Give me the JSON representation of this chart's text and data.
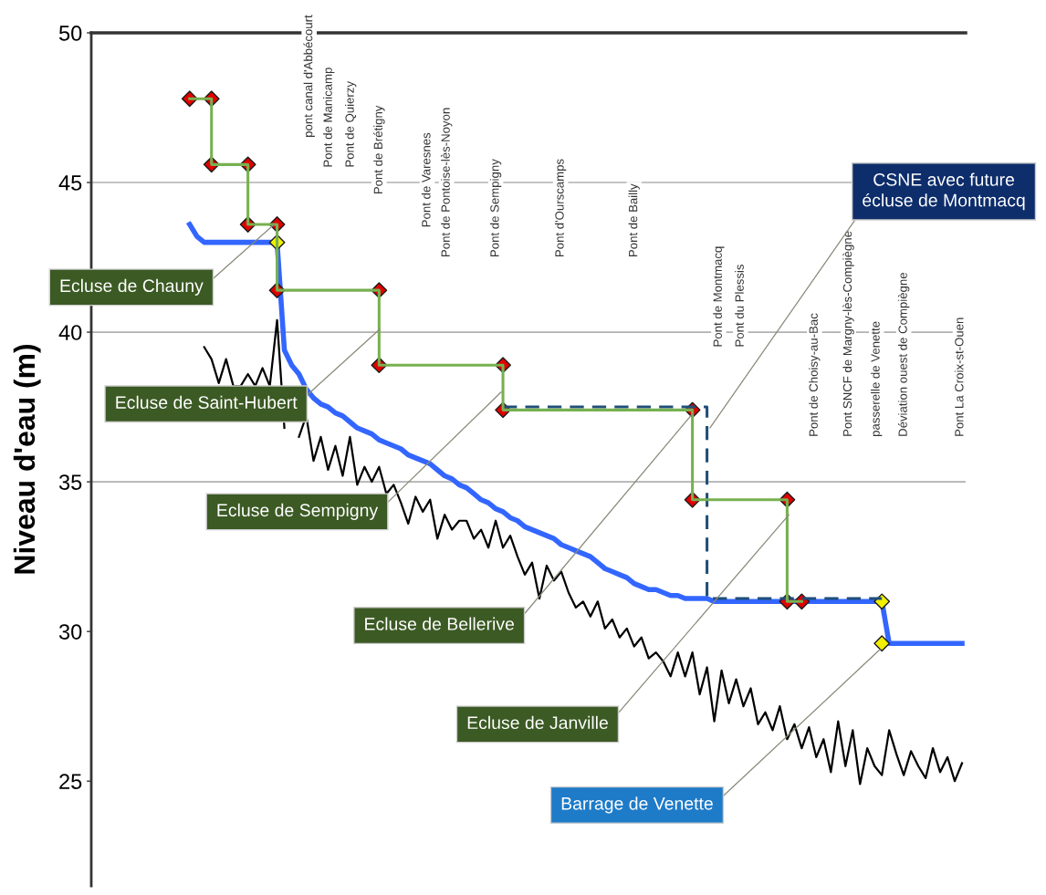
{
  "chart_data": {
    "type": "line",
    "ylabel": "Niveau d'eau (m)",
    "ylim": [
      21.5,
      50
    ],
    "yticks": [
      25,
      30,
      35,
      40,
      45,
      50
    ],
    "tick_labels": "y",
    "legend": false,
    "categories": [
      null,
      null,
      null,
      null,
      null,
      null,
      null,
      null,
      null,
      null,
      null,
      null,
      null,
      null,
      null,
      null,
      null,
      null,
      null,
      null,
      null,
      null,
      null,
      null,
      null,
      null,
      null,
      null,
      null,
      null,
      null,
      null,
      null,
      null,
      null,
      null,
      null,
      null,
      null,
      null,
      null,
      null,
      null,
      null,
      null,
      null,
      null,
      null,
      null,
      null,
      null,
      null,
      null,
      null,
      null,
      null,
      null,
      null,
      null,
      null,
      null,
      null,
      null,
      null,
      null,
      null,
      null,
      null,
      null,
      null,
      null,
      null,
      null,
      null,
      null,
      null,
      null,
      null,
      null,
      null,
      null,
      null,
      null,
      null,
      null,
      null,
      null,
      null,
      null,
      null,
      null,
      null,
      null,
      null,
      null,
      null,
      null,
      null,
      null,
      null,
      null,
      null,
      null,
      null,
      null,
      null,
      null,
      null,
      null,
      null,
      null,
      null,
      null,
      null,
      null,
      null,
      null,
      null,
      null,
      null
    ],
    "ref_lines": [
      {
        "axis": "y",
        "value": 35,
        "color": "#b0b0b0"
      },
      {
        "axis": "y",
        "value": 40,
        "color": "#b0b0b0"
      },
      {
        "axis": "y",
        "value": 45,
        "color": "#b0b0b0"
      }
    ],
    "series": [
      {
        "color": "#000000",
        "marker": "none",
        "line_style": "solid",
        "values": [
          null,
          null,
          null,
          null,
          null,
          null,
          null,
          null,
          null,
          null,
          null,
          null,
          null,
          null,
          null,
          39.5,
          39.1,
          38.3,
          39.1,
          38.2,
          38.2,
          38.6,
          38.2,
          38.8,
          38.2,
          40.4,
          36.8,
          null,
          36.5,
          37.2,
          35.7,
          36.5,
          35.4,
          36.2,
          35.2,
          36.5,
          34.9,
          35.5,
          35.0,
          35.5,
          34.6,
          34.9,
          34.3,
          33.6,
          34.5,
          34.0,
          34.4,
          33.1,
          33.9,
          33.4,
          33.7,
          33.7,
          33.1,
          33.4,
          32.8,
          33.7,
          32.8,
          33.2,
          32.5,
          31.9,
          32.3,
          31.1,
          32.2,
          31.7,
          32.0,
          31.3,
          30.8,
          31.0,
          30.5,
          31.0,
          30.1,
          30.4,
          29.8,
          30.1,
          29.5,
          29.8,
          29.1,
          29.3,
          29.0,
          28.5,
          29.3,
          28.5,
          29.3,
          27.9,
          28.8,
          27.0,
          28.7,
          27.6,
          28.4,
          27.5,
          28.1,
          26.9,
          27.3,
          26.7,
          27.5,
          26.4,
          26.9,
          26.1,
          26.8,
          25.8,
          26.4,
          25.3,
          27.0,
          25.5,
          26.7,
          24.9,
          26.1,
          25.5,
          25.2,
          26.7,
          25.9,
          25.2,
          26.0,
          25.5,
          25.1,
          26.1,
          25.3,
          25.8,
          25.0,
          25.6
        ]
      },
      {
        "color": "#3366ff",
        "marker": "none",
        "line_style": "solid",
        "values": [
          null,
          null,
          null,
          null,
          null,
          null,
          null,
          null,
          null,
          null,
          null,
          null,
          null,
          43.6,
          43.2,
          43.0,
          43.0,
          43.0,
          43.0,
          43.0,
          43.0,
          43.0,
          43.0,
          43.0,
          43.0,
          43.0,
          39.4,
          38.9,
          38.6,
          38.1,
          37.8,
          37.6,
          37.5,
          37.3,
          37.2,
          37.0,
          36.8,
          36.7,
          36.6,
          36.4,
          36.3,
          36.2,
          36.1,
          35.9,
          35.8,
          35.7,
          35.6,
          35.4,
          35.2,
          35.1,
          34.9,
          34.8,
          34.6,
          34.4,
          34.3,
          34.1,
          34.0,
          33.8,
          33.7,
          33.5,
          33.4,
          33.3,
          33.2,
          33.1,
          32.9,
          32.8,
          32.7,
          32.6,
          32.5,
          32.3,
          32.1,
          32.0,
          31.9,
          31.8,
          31.6,
          31.5,
          31.4,
          31.4,
          31.3,
          31.2,
          31.2,
          31.1,
          31.1,
          31.1,
          31.1,
          31.0,
          31.0,
          31.0,
          31.0,
          31.0,
          31.0,
          31.0,
          31.0,
          31.0,
          31.0,
          31.0,
          31.0,
          31.0,
          31.0,
          31.0,
          31.0,
          31.0,
          31.0,
          31.0,
          31.0,
          31.0,
          31.0,
          31.0,
          31.0,
          29.6,
          29.6,
          29.6,
          29.6,
          29.6,
          29.6,
          29.6,
          29.6,
          29.6,
          29.6,
          29.6
        ]
      },
      {
        "type": "step",
        "color": "#1f4e79",
        "marker": "none",
        "line_style": "dashed",
        "values": [
          null,
          null,
          null,
          null,
          null,
          null,
          null,
          null,
          null,
          null,
          null,
          null,
          null,
          null,
          null,
          null,
          null,
          null,
          null,
          null,
          null,
          null,
          null,
          null,
          null,
          null,
          null,
          null,
          null,
          null,
          null,
          null,
          null,
          null,
          null,
          null,
          null,
          null,
          null,
          null,
          null,
          null,
          null,
          null,
          null,
          null,
          null,
          null,
          null,
          null,
          null,
          null,
          null,
          null,
          null,
          null,
          37.5,
          37.5,
          37.5,
          37.5,
          37.5,
          37.5,
          37.5,
          37.5,
          37.5,
          37.5,
          37.5,
          37.5,
          37.5,
          37.5,
          37.5,
          37.5,
          37.5,
          37.5,
          37.5,
          37.5,
          37.5,
          37.5,
          37.5,
          37.5,
          37.5,
          37.5,
          37.5,
          37.5,
          31.1,
          31.1,
          31.1,
          31.1,
          31.1,
          31.1,
          31.1,
          31.1,
          31.1,
          31.1,
          31.1,
          31.1,
          31.1,
          31.1,
          31.1,
          31.1,
          31.1,
          31.1,
          31.1,
          31.1,
          31.1,
          31.1,
          31.1,
          31.1,
          31.1,
          null,
          null,
          null,
          null,
          null,
          null,
          null,
          null,
          null,
          null,
          null
        ]
      },
      {
        "type": "step",
        "color": "#77b050",
        "marker": "none",
        "line_style": "solid",
        "values": [
          null,
          null,
          null,
          null,
          null,
          null,
          null,
          null,
          null,
          null,
          null,
          null,
          null,
          47.8,
          47.8,
          47.8,
          45.6,
          45.6,
          45.6,
          45.6,
          45.6,
          43.6,
          43.6,
          43.6,
          43.6,
          41.4,
          41.4,
          41.4,
          41.4,
          41.4,
          41.4,
          41.4,
          41.4,
          41.4,
          41.4,
          41.4,
          41.4,
          41.4,
          41.4,
          38.9,
          38.9,
          38.9,
          38.9,
          38.9,
          38.9,
          38.9,
          38.9,
          38.9,
          38.9,
          38.9,
          38.9,
          38.9,
          38.9,
          38.9,
          38.9,
          38.9,
          37.4,
          37.4,
          37.4,
          37.4,
          37.4,
          37.4,
          37.4,
          37.4,
          37.4,
          37.4,
          37.4,
          37.4,
          37.4,
          37.4,
          37.4,
          37.4,
          37.4,
          37.4,
          37.4,
          37.4,
          37.4,
          37.4,
          37.4,
          37.4,
          37.4,
          37.4,
          34.4,
          34.4,
          34.4,
          34.4,
          34.4,
          34.4,
          34.4,
          34.4,
          34.4,
          34.4,
          34.4,
          34.4,
          34.4,
          31.0,
          31.0,
          31.0,
          null,
          null,
          null,
          null,
          null,
          null,
          null,
          null,
          null,
          null,
          null,
          null,
          null,
          null,
          null,
          null,
          null,
          null,
          null,
          null,
          null,
          null
        ]
      },
      {
        "type": "scatter",
        "color": "#e00000",
        "marker": "diamond",
        "values": [
          null,
          null,
          null,
          null,
          null,
          null,
          null,
          null,
          null,
          null,
          null,
          null,
          null,
          47.8,
          null,
          null,
          47.8,
          null,
          null,
          null,
          null,
          45.6,
          null,
          null,
          null,
          43.6,
          null,
          null,
          null,
          null,
          null,
          null,
          null,
          null,
          null,
          null,
          null,
          null,
          null,
          41.4,
          null,
          null,
          null,
          null,
          null,
          null,
          null,
          null,
          null,
          null,
          null,
          null,
          null,
          null,
          null,
          null,
          38.9,
          null,
          null,
          null,
          null,
          null,
          null,
          null,
          null,
          null,
          null,
          null,
          null,
          null,
          null,
          null,
          null,
          null,
          null,
          null,
          null,
          null,
          null,
          null,
          null,
          null,
          37.4,
          null,
          null,
          null,
          null,
          null,
          null,
          null,
          null,
          null,
          null,
          null,
          null,
          34.4,
          null,
          31.0,
          null,
          null,
          null,
          null,
          null,
          null,
          null,
          null,
          null,
          null,
          null,
          null,
          null,
          null,
          null,
          null,
          null,
          null,
          null,
          null,
          null,
          null
        ]
      },
      {
        "type": "scatter",
        "color": "#e00000",
        "marker": "diamond",
        "values": [
          null,
          null,
          null,
          null,
          null,
          null,
          null,
          null,
          null,
          null,
          null,
          null,
          null,
          null,
          null,
          null,
          45.6,
          null,
          null,
          null,
          null,
          43.6,
          null,
          null,
          null,
          41.4,
          null,
          null,
          null,
          null,
          null,
          null,
          null,
          null,
          null,
          null,
          null,
          null,
          null,
          38.9,
          null,
          null,
          null,
          null,
          null,
          null,
          null,
          null,
          null,
          null,
          null,
          null,
          null,
          null,
          null,
          null,
          37.4,
          null,
          null,
          null,
          null,
          null,
          null,
          null,
          null,
          null,
          null,
          null,
          null,
          null,
          null,
          null,
          null,
          null,
          null,
          null,
          null,
          null,
          null,
          null,
          null,
          null,
          34.4,
          null,
          null,
          null,
          null,
          null,
          null,
          null,
          null,
          null,
          null,
          null,
          null,
          31.0,
          null,
          null,
          null,
          null,
          null,
          null,
          null,
          null,
          null,
          null,
          null,
          null,
          null,
          null,
          null,
          null,
          null,
          null,
          null,
          null,
          null,
          null,
          null,
          null
        ]
      },
      {
        "type": "scatter",
        "color": "#f0f000",
        "marker": "diamond",
        "values": [
          null,
          null,
          null,
          null,
          null,
          null,
          null,
          null,
          null,
          null,
          null,
          null,
          null,
          null,
          null,
          null,
          null,
          null,
          null,
          null,
          null,
          null,
          null,
          null,
          null,
          43.0,
          null,
          null,
          null,
          null,
          null,
          null,
          null,
          null,
          null,
          null,
          null,
          null,
          null,
          null,
          null,
          null,
          null,
          null,
          null,
          null,
          null,
          null,
          null,
          null,
          null,
          null,
          null,
          null,
          null,
          null,
          null,
          null,
          null,
          null,
          null,
          null,
          null,
          null,
          null,
          null,
          null,
          null,
          null,
          null,
          null,
          null,
          null,
          null,
          null,
          null,
          null,
          null,
          null,
          null,
          null,
          null,
          null,
          null,
          null,
          null,
          null,
          null,
          null,
          null,
          null,
          null,
          null,
          null,
          null,
          null,
          null,
          null,
          null,
          null,
          null,
          null,
          null,
          null,
          null,
          null,
          null,
          null,
          31.0,
          null,
          null,
          null,
          null,
          null,
          null,
          null,
          null,
          null,
          null,
          null
        ]
      },
      {
        "type": "scatter",
        "color": "#f0f000",
        "marker": "diamond",
        "values": [
          null,
          null,
          null,
          null,
          null,
          null,
          null,
          null,
          null,
          null,
          null,
          null,
          null,
          null,
          null,
          null,
          null,
          null,
          null,
          null,
          null,
          null,
          null,
          null,
          null,
          null,
          null,
          null,
          null,
          null,
          null,
          null,
          null,
          null,
          null,
          null,
          null,
          null,
          null,
          null,
          null,
          null,
          null,
          null,
          null,
          null,
          null,
          null,
          null,
          null,
          null,
          null,
          null,
          null,
          null,
          null,
          null,
          null,
          null,
          null,
          null,
          null,
          null,
          null,
          null,
          null,
          null,
          null,
          null,
          null,
          null,
          null,
          null,
          null,
          null,
          null,
          null,
          null,
          null,
          null,
          null,
          null,
          null,
          null,
          null,
          null,
          null,
          null,
          null,
          null,
          null,
          null,
          null,
          null,
          null,
          null,
          null,
          null,
          null,
          null,
          null,
          null,
          null,
          null,
          null,
          null,
          null,
          null,
          29.6,
          null,
          null,
          null,
          null,
          null,
          null,
          null,
          null,
          null,
          null,
          null
        ]
      }
    ],
    "annotations": [
      "Ecluse de Chauny",
      "Ecluse de Saint-Hubert",
      "Ecluse de Sempigny",
      "Ecluse de Bellerive",
      "Ecluse de Janville",
      "Barrage de Venette",
      "CSNE avec future\nécluse de Montmacq",
      "pont canal d'Abbécourt",
      "Pont de Manicamp",
      "Pont de Quierzy",
      "Pont de Brétigny",
      "Pont de Varesnes",
      "Pont de Pontoise-lès-Noyon",
      "Pont de Sempigny",
      "Pont d'Ourscamps",
      "Pont de Bailly",
      "Pont de Montmacq",
      "Pont du Plessis",
      "Pont de Choisy-au-Bac",
      "Pont SNCF de Margny-lès-Compiègne",
      "passerelle de Venette",
      "Déviation ouest de Compiègne",
      "Pont La Croix-st-Ouen"
    ]
  }
}
